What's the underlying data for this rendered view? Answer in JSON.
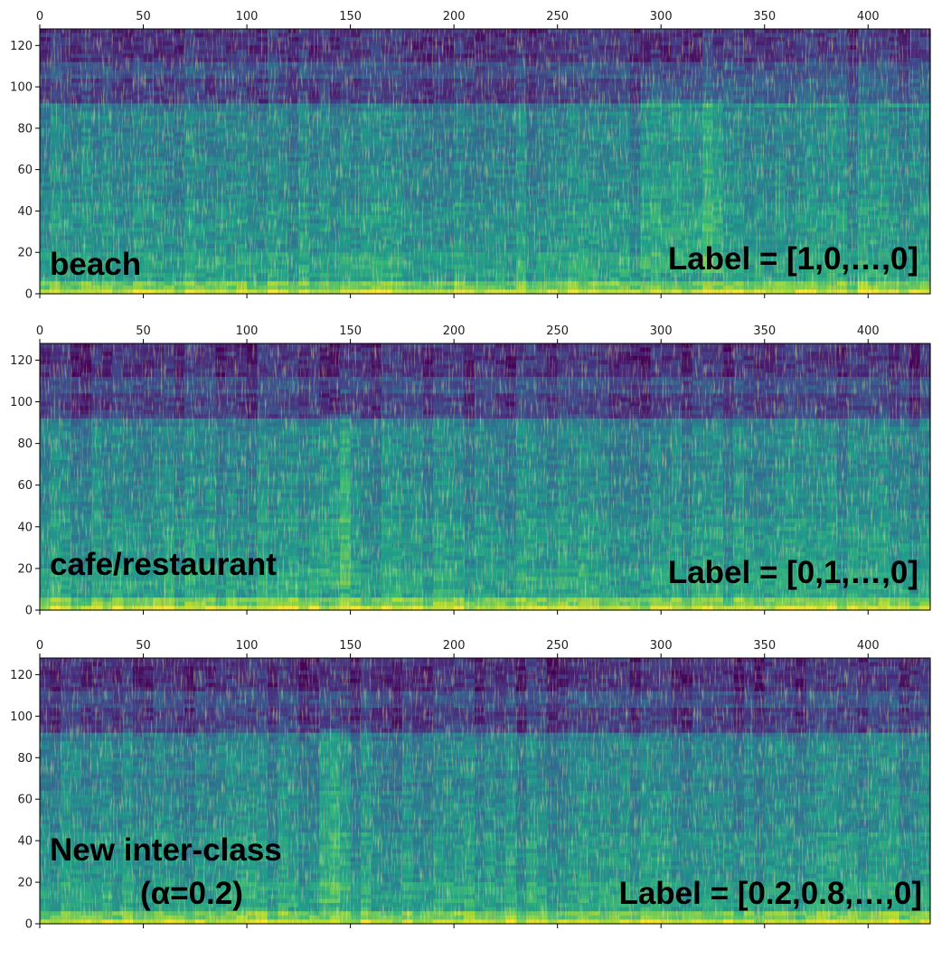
{
  "chart_data": [
    {
      "type": "heatmap",
      "panel": "beach",
      "colormap": "viridis",
      "xlim": [
        0,
        430
      ],
      "ylim": [
        0,
        128
      ],
      "xticks": [
        0,
        50,
        100,
        150,
        200,
        250,
        300,
        350,
        400
      ],
      "yticks": [
        0,
        20,
        40,
        60,
        80,
        100,
        120
      ],
      "xtick_position": "top",
      "annotations": {
        "class_text": "beach",
        "label_text": "Label = [1,0,…,0]"
      },
      "features": {
        "bright_band_below": 6,
        "dark_band_above": 95,
        "bright_region_x": [
          290,
          330
        ]
      }
    },
    {
      "type": "heatmap",
      "panel": "cafe",
      "colormap": "viridis",
      "xlim": [
        0,
        430
      ],
      "ylim": [
        0,
        128
      ],
      "xticks": [
        0,
        50,
        100,
        150,
        200,
        250,
        300,
        350,
        400
      ],
      "yticks": [
        0,
        20,
        40,
        60,
        80,
        100,
        120
      ],
      "xtick_position": "top",
      "annotations": {
        "class_text": "cafe/restaurant",
        "label_text": "Label = [0,1,…,0]"
      },
      "features": {
        "bright_band_below": 6,
        "dark_band_above": 95,
        "bright_region_x": [
          135,
          150
        ]
      }
    },
    {
      "type": "heatmap",
      "panel": "mix",
      "colormap": "viridis",
      "xlim": [
        0,
        430
      ],
      "ylim": [
        0,
        128
      ],
      "xticks": [
        0,
        50,
        100,
        150,
        200,
        250,
        300,
        350,
        400
      ],
      "yticks": [
        0,
        20,
        40,
        60,
        80,
        100,
        120
      ],
      "xtick_position": "top",
      "annotations": {
        "class_text": "New inter-class",
        "class_text_2": "(α=0.2)",
        "label_text": "Label = [0.2,0.8,…,0]"
      },
      "features": {
        "bright_band_below": 6,
        "dark_band_above": 95,
        "bright_region_x": [
          135,
          150
        ]
      }
    }
  ]
}
